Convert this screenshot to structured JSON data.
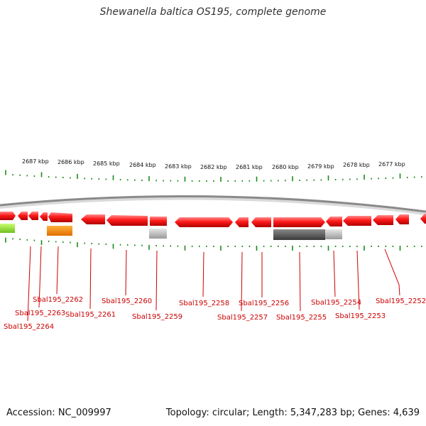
{
  "title": "Shewanella baltica OS195, complete genome",
  "footer": {
    "accession": "Accession: NC_009997",
    "summary": "Topology: circular; Length: 5,347,283 bp; Genes: 4,639"
  },
  "colors": {
    "backbone": "#8a8a8a",
    "gene": "#ff1a1a",
    "tick": "#1a8a1a",
    "label": "#cc0000"
  },
  "kbp_labels": [
    "2687 kbp",
    "2686 kbp",
    "2685 kbp",
    "2684 kbp",
    "2683 kbp",
    "2682 kbp",
    "2681 kbp",
    "2680 kbp",
    "2679 kbp",
    "2678 kbp",
    "2677 kbp"
  ],
  "gene_labels": [
    "Sbal195_2262",
    "Sbal195_2263",
    "Sbal195_2264",
    "Sbal195_2261",
    "Sbal195_2260",
    "Sbal195_2259",
    "Sbal195_2258",
    "Sbal195_2257",
    "Sbal195_2256",
    "Sbal195_2255",
    "Sbal195_2254",
    "Sbal195_2253",
    "Sbal195_2252"
  ]
}
